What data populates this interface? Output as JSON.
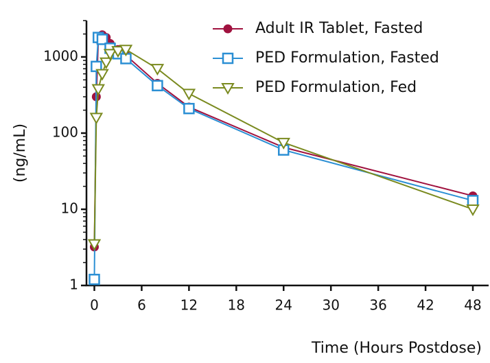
{
  "chart_data": {
    "type": "line",
    "x_label": "Time (Hours Postdose)",
    "y_label": "(ng/mL)",
    "log_y": true,
    "legend": "upper right",
    "xlim": [
      -1,
      50
    ],
    "xticks": [
      0,
      6,
      12,
      18,
      24,
      30,
      36,
      42,
      48
    ],
    "ylim": [
      1,
      3000
    ],
    "yticks": [
      1,
      10,
      100,
      1000
    ],
    "series": [
      {
        "name": "Adult IR Tablet, Fasted",
        "color": "#a0123f",
        "marker": "circle",
        "x": [
          0,
          0.25,
          0.5,
          1,
          1.5,
          2,
          3,
          4,
          8,
          12,
          24,
          48
        ],
        "values": [
          3.2,
          300,
          1700,
          1950,
          1800,
          1500,
          1250,
          1050,
          450,
          220,
          65,
          15
        ]
      },
      {
        "name": "PED Formulation, Fasted",
        "color": "#2b8fd4",
        "marker": "square",
        "x": [
          0,
          0.25,
          0.5,
          1,
          2,
          3,
          4,
          8,
          12,
          24,
          48
        ],
        "values": [
          1.2,
          750,
          1800,
          1700,
          1300,
          1100,
          950,
          420,
          210,
          60,
          13
        ]
      },
      {
        "name": "PED Formulation, Fed",
        "color": "#7a8a1f",
        "marker": "triangle-down",
        "x": [
          0,
          0.25,
          0.5,
          1,
          1.5,
          2,
          3,
          4,
          8,
          12,
          24,
          48
        ],
        "values": [
          3.5,
          160,
          380,
          600,
          850,
          1100,
          1200,
          1250,
          700,
          330,
          75,
          10
        ]
      }
    ]
  }
}
